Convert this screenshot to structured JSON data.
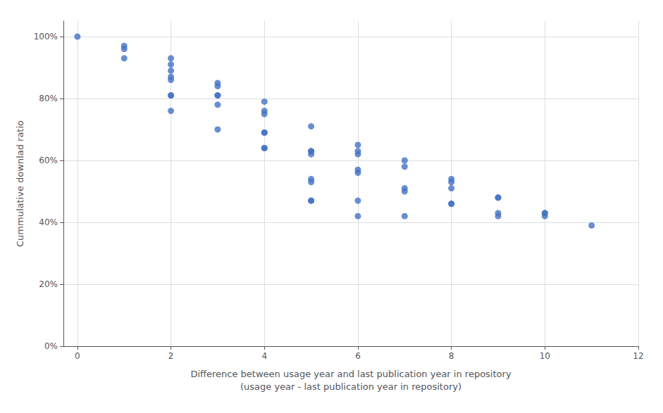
{
  "chart_data": {
    "type": "scatter",
    "xlabel": "Difference between usage year and last publication year in repository\n(usage year - last publication year in repository)",
    "ylabel": "Cummulative downlad ratio",
    "color": "#4472C4",
    "marker": "circle",
    "grid": true,
    "xlim": [
      -0.3,
      12
    ],
    "ylim": [
      0.0,
      1.05
    ],
    "xticks": [
      0,
      2,
      4,
      6,
      8,
      10,
      12
    ],
    "yticks": [
      {
        "value": 0.0,
        "label": "0%"
      },
      {
        "value": 0.2,
        "label": "20%"
      },
      {
        "value": 0.4,
        "label": "40%"
      },
      {
        "value": 0.6,
        "label": "60%"
      },
      {
        "value": 0.8,
        "label": "80%"
      },
      {
        "value": 1.0,
        "label": "100%"
      }
    ],
    "x": [
      0,
      1,
      1,
      1,
      2,
      2,
      2,
      2,
      2,
      2,
      2,
      2,
      3,
      3,
      3,
      3,
      3,
      3,
      4,
      4,
      4,
      4,
      4,
      4,
      4,
      5,
      5,
      5,
      5,
      5,
      5,
      5,
      5,
      6,
      6,
      6,
      6,
      6,
      6,
      6,
      7,
      7,
      7,
      7,
      7,
      8,
      8,
      8,
      8,
      8,
      9,
      9,
      9,
      9,
      10,
      10,
      10,
      11
    ],
    "values": [
      1.0,
      0.97,
      0.96,
      0.93,
      0.93,
      0.91,
      0.89,
      0.87,
      0.86,
      0.81,
      0.81,
      0.76,
      0.85,
      0.84,
      0.81,
      0.81,
      0.78,
      0.7,
      0.79,
      0.76,
      0.75,
      0.69,
      0.69,
      0.64,
      0.64,
      0.71,
      0.63,
      0.63,
      0.62,
      0.54,
      0.53,
      0.47,
      0.47,
      0.65,
      0.63,
      0.62,
      0.57,
      0.56,
      0.47,
      0.42,
      0.6,
      0.58,
      0.51,
      0.5,
      0.42,
      0.54,
      0.53,
      0.51,
      0.46,
      0.46,
      0.48,
      0.48,
      0.43,
      0.42,
      0.43,
      0.43,
      0.42,
      0.39
    ]
  }
}
